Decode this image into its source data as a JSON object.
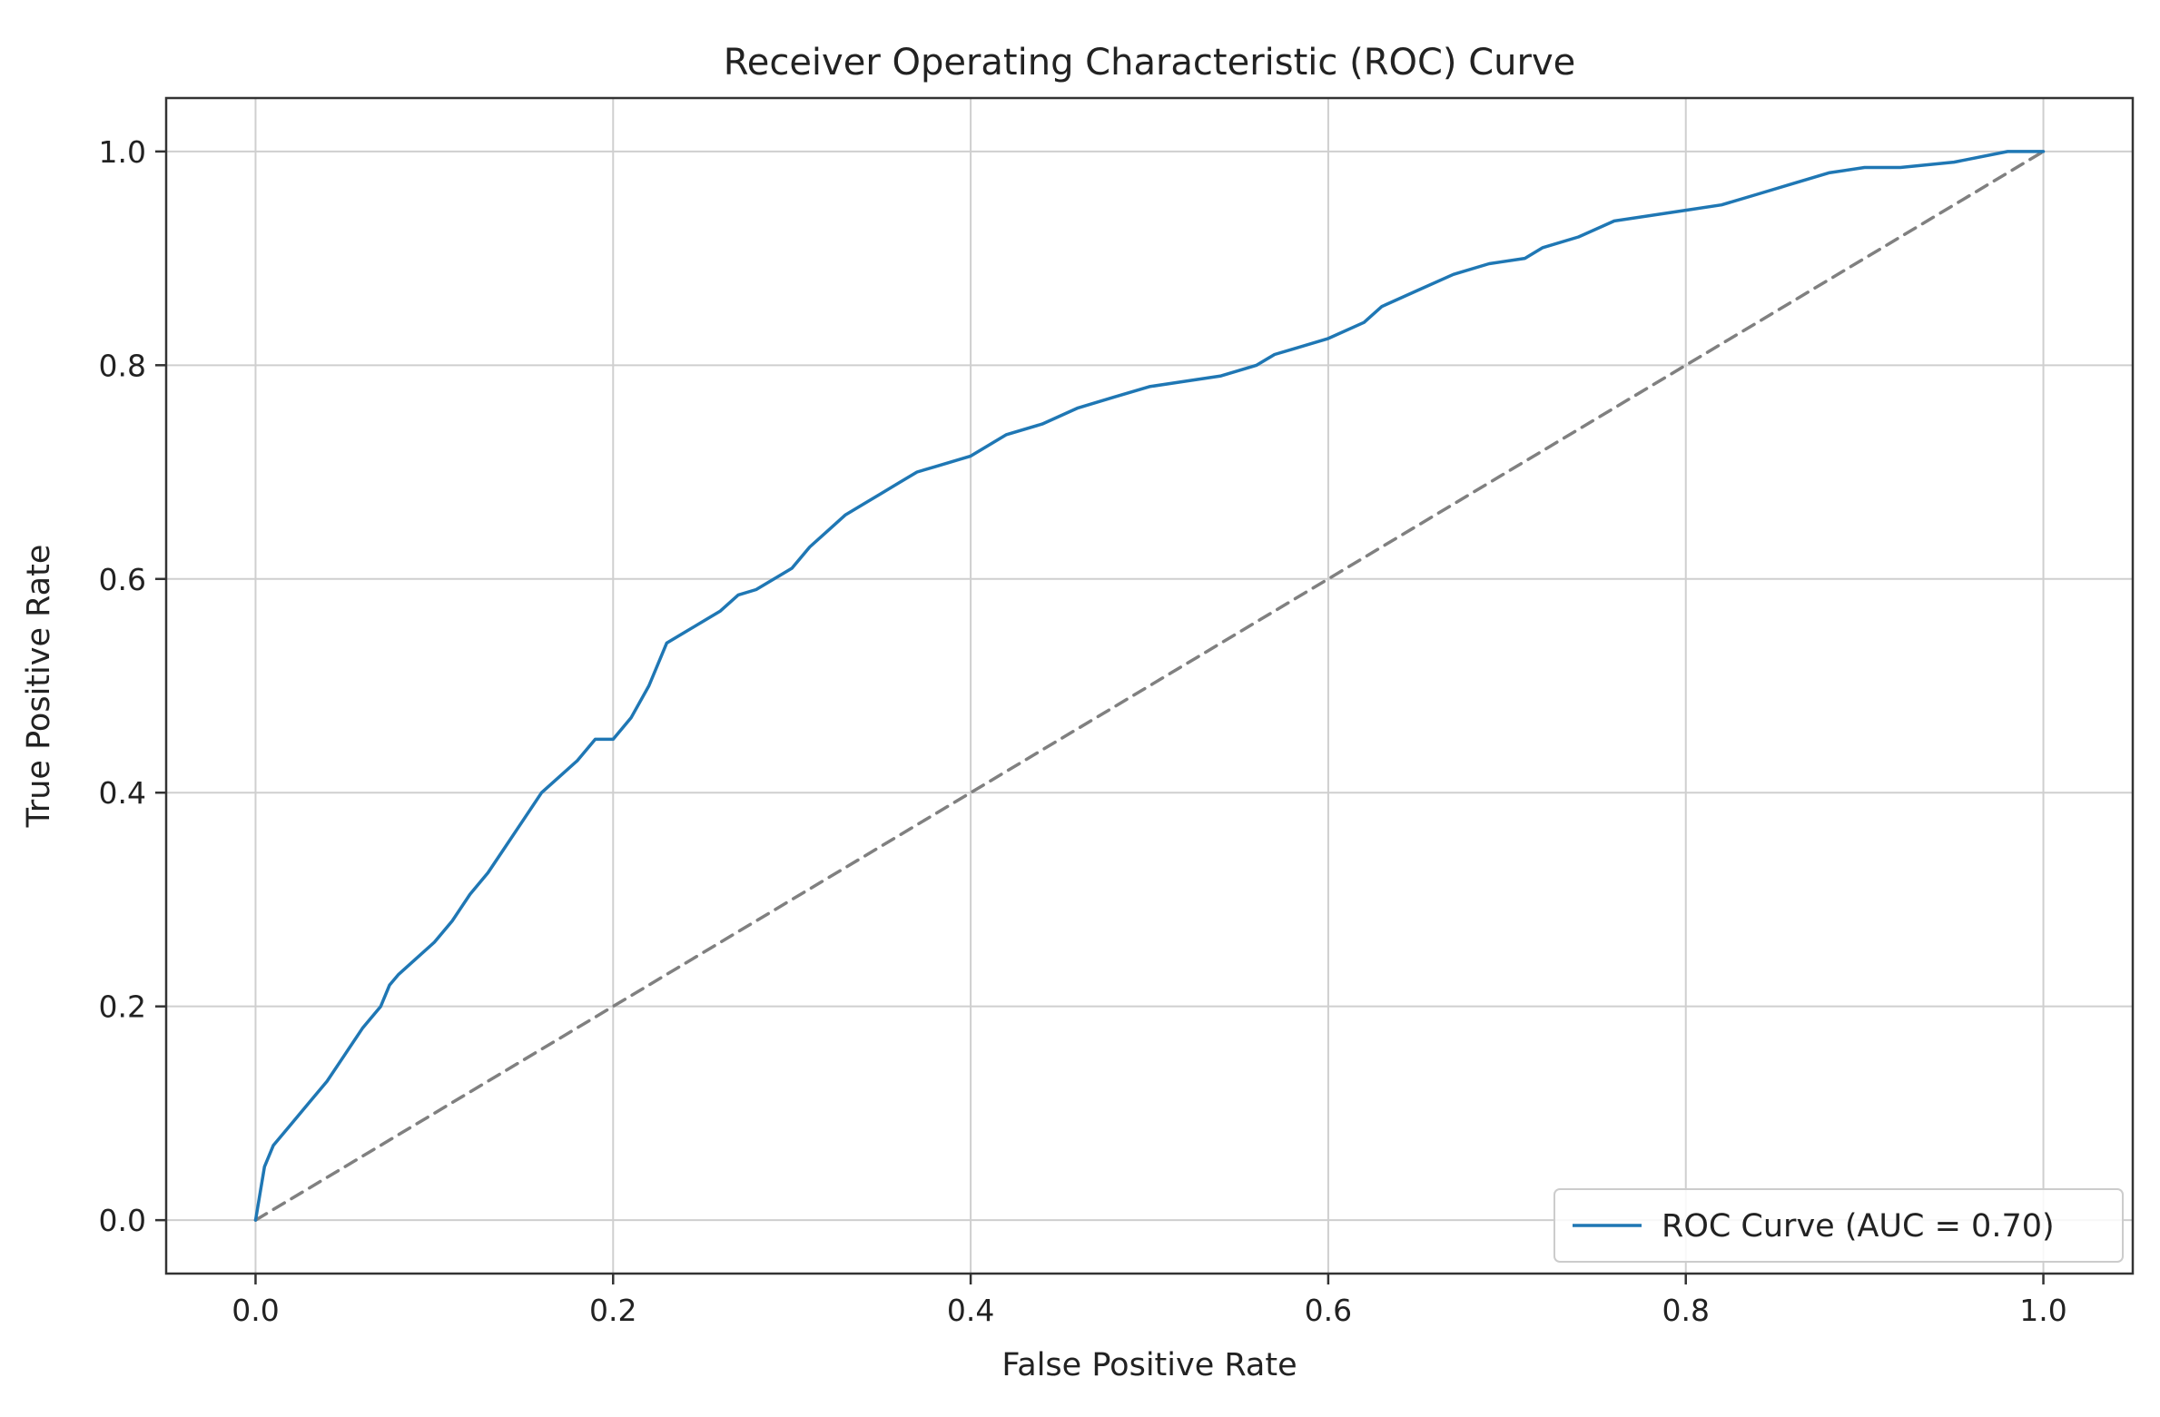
{
  "chart_data": {
    "type": "line",
    "title": "Receiver Operating Characteristic (ROC) Curve",
    "xlabel": "False Positive Rate",
    "ylabel": "True Positive Rate",
    "xlim": [
      -0.05,
      1.05
    ],
    "ylim": [
      -0.05,
      1.05
    ],
    "xticks": [
      0.0,
      0.2,
      0.4,
      0.6,
      0.8,
      1.0
    ],
    "xtick_labels": [
      "0.0",
      "0.2",
      "0.4",
      "0.6",
      "0.8",
      "1.0"
    ],
    "yticks": [
      0.0,
      0.2,
      0.4,
      0.6,
      0.8,
      1.0
    ],
    "ytick_labels": [
      "0.0",
      "0.2",
      "0.4",
      "0.6",
      "0.8",
      "1.0"
    ],
    "grid": true,
    "legend_position": "lower-right",
    "series": [
      {
        "name": "ROC Curve (AUC = 0.70)",
        "color": "#1f77b4",
        "style": "solid",
        "x": [
          0.0,
          0.002,
          0.005,
          0.01,
          0.02,
          0.03,
          0.04,
          0.05,
          0.06,
          0.07,
          0.075,
          0.08,
          0.09,
          0.1,
          0.11,
          0.12,
          0.13,
          0.14,
          0.15,
          0.16,
          0.17,
          0.18,
          0.19,
          0.2,
          0.21,
          0.22,
          0.23,
          0.24,
          0.25,
          0.26,
          0.27,
          0.28,
          0.29,
          0.3,
          0.31,
          0.32,
          0.33,
          0.34,
          0.35,
          0.36,
          0.37,
          0.38,
          0.39,
          0.4,
          0.42,
          0.44,
          0.46,
          0.48,
          0.5,
          0.52,
          0.54,
          0.56,
          0.57,
          0.58,
          0.6,
          0.62,
          0.63,
          0.65,
          0.67,
          0.69,
          0.71,
          0.72,
          0.74,
          0.76,
          0.8,
          0.82,
          0.84,
          0.86,
          0.88,
          0.9,
          0.92,
          0.95,
          0.98,
          1.0
        ],
        "y": [
          0.0,
          0.02,
          0.05,
          0.07,
          0.09,
          0.11,
          0.13,
          0.155,
          0.18,
          0.2,
          0.22,
          0.23,
          0.245,
          0.26,
          0.28,
          0.305,
          0.325,
          0.35,
          0.375,
          0.4,
          0.415,
          0.43,
          0.45,
          0.45,
          0.47,
          0.5,
          0.54,
          0.55,
          0.56,
          0.57,
          0.585,
          0.59,
          0.6,
          0.61,
          0.63,
          0.645,
          0.66,
          0.67,
          0.68,
          0.69,
          0.7,
          0.705,
          0.71,
          0.715,
          0.735,
          0.745,
          0.76,
          0.77,
          0.78,
          0.785,
          0.79,
          0.8,
          0.81,
          0.815,
          0.825,
          0.84,
          0.855,
          0.87,
          0.885,
          0.895,
          0.9,
          0.91,
          0.92,
          0.935,
          0.945,
          0.95,
          0.96,
          0.97,
          0.98,
          0.985,
          0.985,
          0.99,
          1.0,
          1.0
        ]
      },
      {
        "name": "",
        "color": "#808080",
        "style": "dashed",
        "x": [
          0.0,
          1.0
        ],
        "y": [
          0.0,
          1.0
        ]
      }
    ]
  }
}
